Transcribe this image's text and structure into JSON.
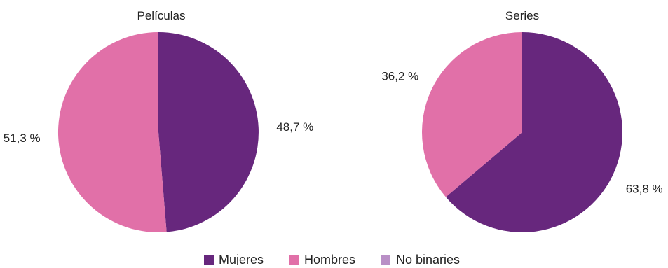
{
  "chart_data": {
    "type": "pie",
    "legend": {
      "position": "bottom",
      "entries": [
        {
          "label": "Mujeres",
          "color": "#67277d"
        },
        {
          "label": "Hombres",
          "color": "#e170a8"
        },
        {
          "label": "No binaries",
          "color": "#b98fc6"
        }
      ]
    },
    "charts": [
      {
        "title": "Películas",
        "start_angle_deg": 0,
        "slices": [
          {
            "label": "Mujeres",
            "value": 48.7,
            "text": "48,7 %",
            "color": "#67277d"
          },
          {
            "label": "Hombres",
            "value": 51.3,
            "text": "51,3 %",
            "color": "#e170a8"
          }
        ]
      },
      {
        "title": "Series",
        "start_angle_deg": 0,
        "slices": [
          {
            "label": "Mujeres",
            "value": 63.8,
            "text": "63,8 %",
            "color": "#67277d"
          },
          {
            "label": "Hombres",
            "value": 36.2,
            "text": "36,2 %",
            "color": "#e170a8"
          }
        ]
      }
    ]
  }
}
